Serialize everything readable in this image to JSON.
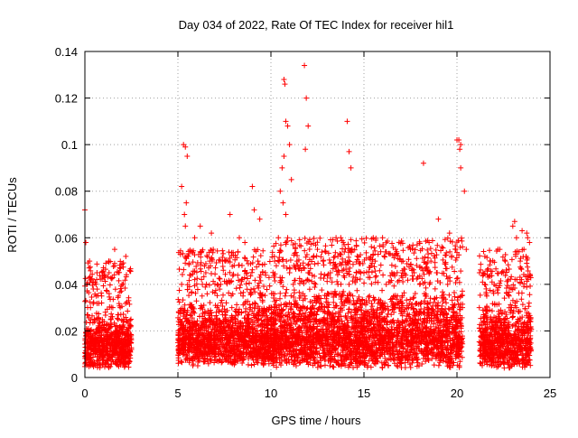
{
  "chart_data": {
    "type": "scatter",
    "title": "Day 034 of 2022, Rate Of TEC Index for receiver hil1",
    "xlabel": "GPS time / hours",
    "ylabel": "ROTI / TECUs",
    "xlim": [
      0,
      25
    ],
    "ylim": [
      0,
      0.14
    ],
    "xticks": [
      0,
      5,
      10,
      15,
      20,
      25
    ],
    "yticks": [
      0,
      0.02,
      0.04,
      0.06,
      0.08,
      0.1,
      0.12,
      0.14
    ],
    "xtick_labels": [
      "0",
      "5",
      "10",
      "15",
      "20",
      "25"
    ],
    "ytick_labels": [
      "0",
      "0.02",
      "0.04",
      "0.06",
      "0.08",
      "0.1",
      "0.12",
      "0.14"
    ],
    "grid": true,
    "marker": "+",
    "colors": {
      "series": "#ff0000",
      "grid": "#a0a0a0",
      "axis": "#000000"
    },
    "series": [
      {
        "x": [
          0.0,
          0.05,
          0.1,
          0.15,
          0.2,
          0.3,
          0.4,
          0.5,
          0.6,
          0.7,
          0.8,
          0.9,
          1.0,
          1.1,
          1.2,
          1.3,
          1.4,
          1.5,
          1.6,
          1.7,
          1.8,
          1.9,
          2.0,
          2.1,
          2.2,
          2.3,
          2.4,
          2.5,
          0.1,
          0.3,
          0.5,
          0.8,
          1.2,
          1.5,
          1.8,
          2.2,
          2.4,
          0.05,
          0.15,
          0.25,
          0.45,
          0.65,
          0.9,
          1.3,
          1.6,
          1.9,
          2.35,
          5.0,
          5.1,
          5.2,
          5.3,
          5.4,
          5.5,
          5.7,
          5.9,
          6.1,
          6.3,
          6.5,
          6.7,
          6.9,
          7.1,
          7.3,
          7.5,
          7.7,
          7.9,
          8.1,
          8.3,
          8.5,
          8.7,
          8.9,
          9.1,
          9.3,
          9.5,
          9.7,
          9.9,
          5.2,
          5.35,
          5.45,
          5.4,
          6.2,
          6.8,
          7.4,
          7.8,
          8.6,
          9.0,
          9.4,
          10.0,
          10.2,
          10.4,
          10.5,
          10.6,
          10.7,
          10.8,
          10.9,
          11.0,
          11.2,
          11.4,
          11.6,
          11.8,
          12.0,
          12.2,
          12.4,
          12.6,
          12.8,
          13.0,
          13.2,
          13.4,
          13.6,
          13.8,
          14.0,
          14.2,
          14.4,
          14.6,
          14.8,
          10.7,
          10.75,
          10.8,
          10.9,
          11.0,
          11.1,
          11.8,
          11.9,
          12.0,
          11.85,
          14.1,
          14.2,
          14.3,
          10.65,
          12.5,
          13.5,
          15.0,
          15.3,
          15.6,
          15.9,
          16.2,
          16.5,
          16.8,
          17.1,
          17.4,
          17.7,
          18.0,
          18.3,
          18.6,
          18.9,
          19.2,
          19.5,
          19.8,
          20.0,
          20.2,
          20.4,
          20.5,
          20.1,
          20.15,
          20.2,
          18.2,
          19.0,
          16.0,
          17.5,
          18.5,
          15.5,
          16.7,
          19.6,
          21.2,
          21.4,
          21.6,
          21.8,
          22.0,
          22.2,
          22.4,
          22.6,
          22.8,
          23.0,
          23.2,
          23.4,
          23.6,
          23.8,
          23.9,
          21.5,
          22.3,
          23.1,
          23.5,
          23.75
        ],
        "y": [
          0.072,
          0.058,
          0.04,
          0.02,
          0.012,
          0.03,
          0.018,
          0.025,
          0.04,
          0.015,
          0.02,
          0.035,
          0.012,
          0.028,
          0.018,
          0.045,
          0.022,
          0.03,
          0.055,
          0.02,
          0.035,
          0.015,
          0.04,
          0.025,
          0.052,
          0.018,
          0.046,
          0.012,
          0.008,
          0.01,
          0.006,
          0.009,
          0.007,
          0.01,
          0.008,
          0.009,
          0.007,
          0.033,
          0.027,
          0.05,
          0.038,
          0.045,
          0.032,
          0.036,
          0.048,
          0.03,
          0.033,
          0.015,
          0.025,
          0.04,
          0.1,
          0.099,
          0.095,
          0.03,
          0.06,
          0.02,
          0.035,
          0.045,
          0.025,
          0.055,
          0.03,
          0.04,
          0.02,
          0.05,
          0.03,
          0.025,
          0.06,
          0.035,
          0.045,
          0.03,
          0.072,
          0.05,
          0.035,
          0.045,
          0.03,
          0.082,
          0.07,
          0.075,
          0.065,
          0.065,
          0.062,
          0.05,
          0.07,
          0.058,
          0.082,
          0.068,
          0.03,
          0.05,
          0.06,
          0.08,
          0.09,
          0.095,
          0.07,
          0.06,
          0.045,
          0.04,
          0.05,
          0.035,
          0.03,
          0.045,
          0.025,
          0.04,
          0.03,
          0.05,
          0.035,
          0.045,
          0.03,
          0.04,
          0.035,
          0.05,
          0.04,
          0.035,
          0.045,
          0.03,
          0.128,
          0.126,
          0.11,
          0.108,
          0.1,
          0.085,
          0.134,
          0.12,
          0.108,
          0.098,
          0.11,
          0.097,
          0.09,
          0.075,
          0.055,
          0.06,
          0.045,
          0.035,
          0.05,
          0.03,
          0.04,
          0.045,
          0.035,
          0.05,
          0.03,
          0.045,
          0.04,
          0.035,
          0.05,
          0.045,
          0.035,
          0.04,
          0.03,
          0.102,
          0.1,
          0.08,
          0.055,
          0.102,
          0.098,
          0.09,
          0.092,
          0.068,
          0.06,
          0.055,
          0.058,
          0.06,
          0.055,
          0.062,
          0.03,
          0.045,
          0.035,
          0.05,
          0.04,
          0.055,
          0.045,
          0.05,
          0.035,
          0.065,
          0.06,
          0.05,
          0.055,
          0.06,
          0.058,
          0.052,
          0.055,
          0.067,
          0.063,
          0.062
        ]
      }
    ],
    "dense_bands": [
      {
        "x_range": [
          0.0,
          2.5
        ],
        "y_range": [
          0.004,
          0.03
        ]
      },
      {
        "x_range": [
          5.0,
          10.0
        ],
        "y_range": [
          0.005,
          0.035
        ]
      },
      {
        "x_range": [
          10.0,
          20.3
        ],
        "y_range": [
          0.004,
          0.04
        ]
      },
      {
        "x_range": [
          21.2,
          24.0
        ],
        "y_range": [
          0.004,
          0.035
        ]
      }
    ]
  }
}
